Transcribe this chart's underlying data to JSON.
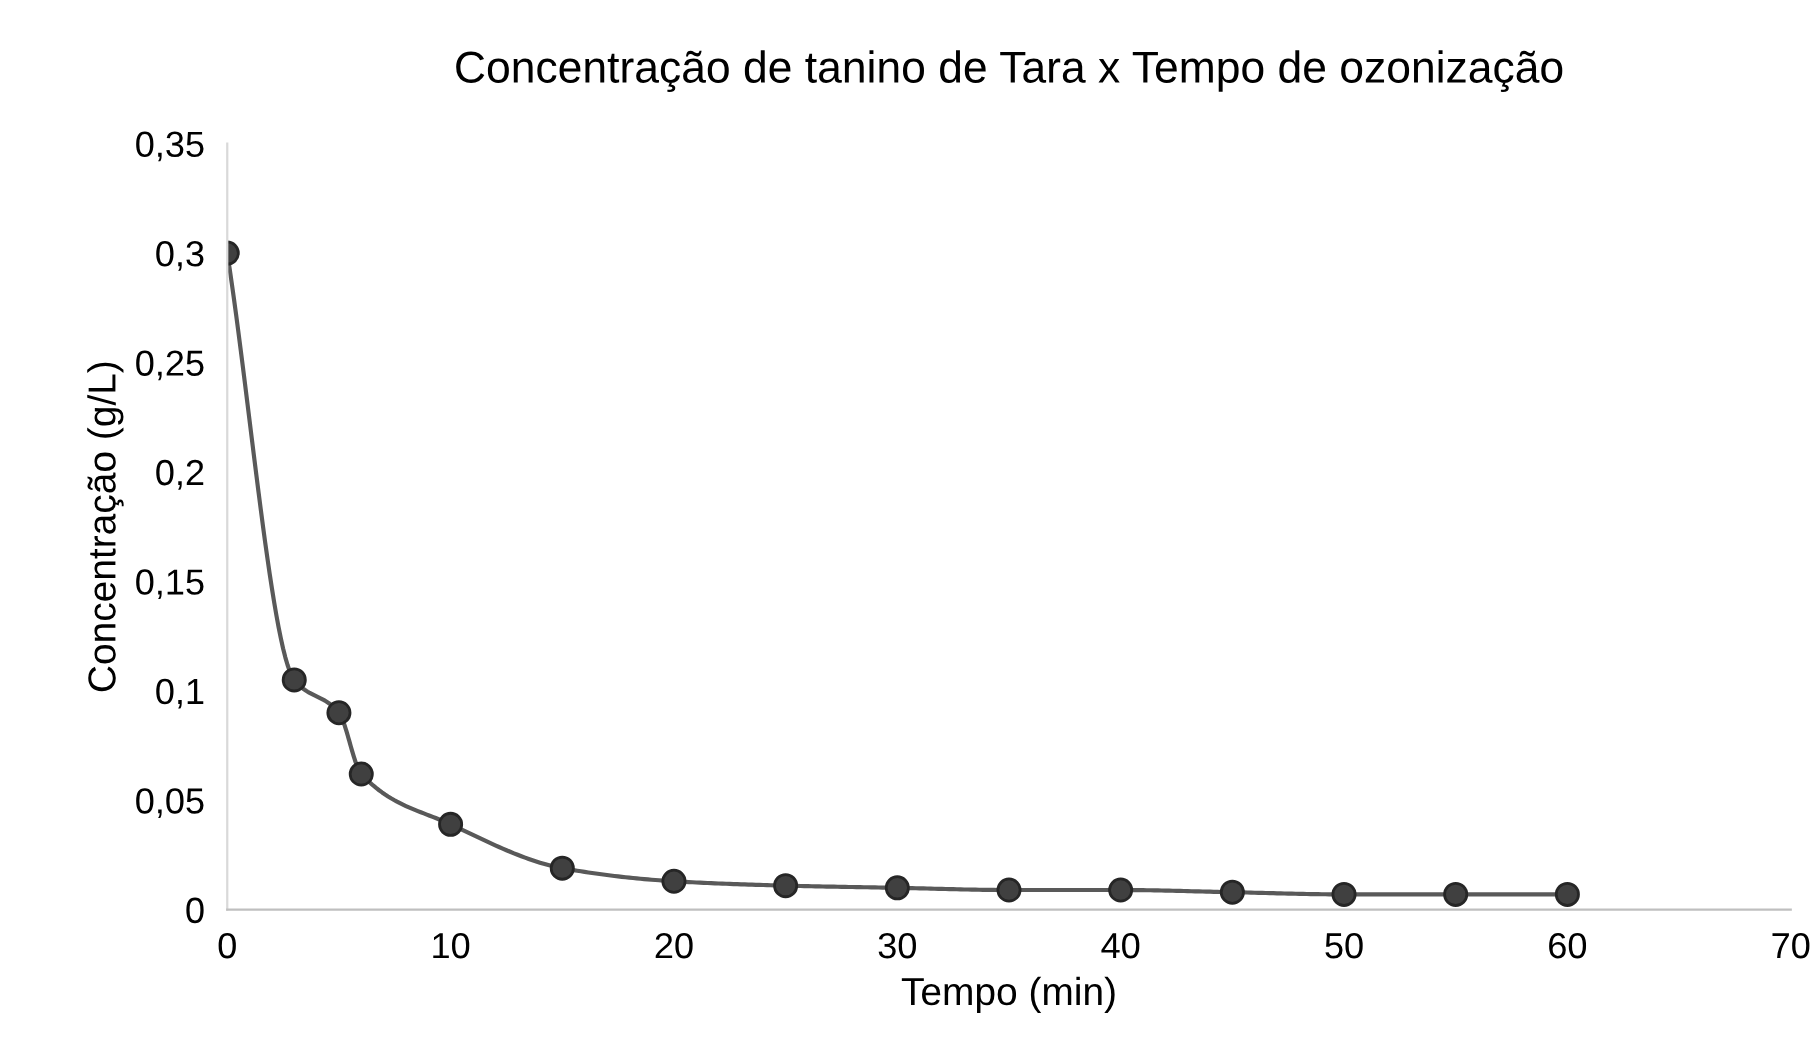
{
  "chart_data": {
    "type": "line",
    "title": "Concentração de tanino de Tara x Tempo de ozonização",
    "xlabel": "Tempo (min)",
    "ylabel": "Concentração (g/L)",
    "x": [
      0,
      3,
      5,
      6,
      10,
      15,
      20,
      25,
      30,
      35,
      40,
      45,
      50,
      55,
      60
    ],
    "series": [
      {
        "color": "#595959",
        "values": [
          0.3,
          0.105,
          0.09,
          0.062,
          0.039,
          0.019,
          0.013,
          0.011,
          0.01,
          0.009,
          0.009,
          0.008,
          0.007,
          0.007,
          0.007
        ]
      }
    ],
    "xlim": [
      0,
      70
    ],
    "xticks": [
      0,
      10,
      20,
      30,
      40,
      50,
      60,
      70
    ],
    "ylim": [
      0,
      0.35
    ],
    "yticks": [
      {
        "value": 0,
        "label": "0"
      },
      {
        "value": 0.05,
        "label": "0,05"
      },
      {
        "value": 0.1,
        "label": "0,1"
      },
      {
        "value": 0.15,
        "label": "0,15"
      },
      {
        "value": 0.2,
        "label": "0,2"
      },
      {
        "value": 0.25,
        "label": "0,25"
      },
      {
        "value": 0.3,
        "label": "0,3"
      },
      {
        "value": 0.35,
        "label": "0,35"
      }
    ],
    "grid": false,
    "legend": false,
    "marker": "circle",
    "line_style": "solid"
  }
}
